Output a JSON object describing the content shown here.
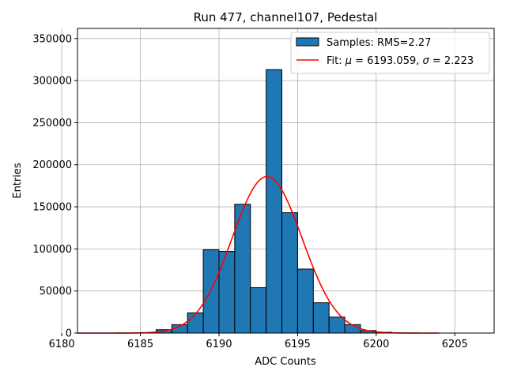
{
  "chart_data": {
    "type": "bar",
    "title": "Run 477, channel107, Pedestal",
    "xlabel": "ADC Counts",
    "ylabel": "Entries",
    "xlim": [
      6181.0,
      6207.5
    ],
    "ylim": [
      0,
      362000
    ],
    "xticks": [
      6180,
      6185,
      6190,
      6195,
      6200,
      6205
    ],
    "yticks": [
      0,
      50000,
      100000,
      150000,
      200000,
      250000,
      300000,
      350000
    ],
    "grid": true,
    "legend_position": "top-right",
    "colors": {
      "bars": "#1f77b4",
      "fit": "#ff0000",
      "edge": "#000000",
      "grid": "#b0b0b0"
    },
    "series": [
      {
        "name": "Samples: RMS=2.27",
        "kind": "histogram",
        "bins": [
          {
            "x0": 6186,
            "x1": 6187,
            "value": 4000
          },
          {
            "x0": 6187,
            "x1": 6188,
            "value": 10000
          },
          {
            "x0": 6188,
            "x1": 6189,
            "value": 24000
          },
          {
            "x0": 6189,
            "x1": 6190,
            "value": 99000
          },
          {
            "x0": 6190,
            "x1": 6191,
            "value": 97000
          },
          {
            "x0": 6191,
            "x1": 6192,
            "value": 153000
          },
          {
            "x0": 6192,
            "x1": 6193,
            "value": 54000
          },
          {
            "x0": 6193,
            "x1": 6194,
            "value": 313000
          },
          {
            "x0": 6194,
            "x1": 6195,
            "value": 143000
          },
          {
            "x0": 6195,
            "x1": 6196,
            "value": 76000
          },
          {
            "x0": 6196,
            "x1": 6197,
            "value": 36000
          },
          {
            "x0": 6197,
            "x1": 6198,
            "value": 19000
          },
          {
            "x0": 6198,
            "x1": 6199,
            "value": 10000
          },
          {
            "x0": 6199,
            "x1": 6200,
            "value": 3000
          },
          {
            "x0": 6200,
            "x1": 6201,
            "value": 1000
          }
        ]
      },
      {
        "name_prefix": "Fit: ",
        "name_mu_symbol": "μ",
        "name_mid": " = 6193.059, ",
        "name_sigma_symbol": "σ",
        "name_suffix": " = 2.223",
        "kind": "gaussian",
        "mu": 6193.059,
        "sigma": 2.223,
        "amplitude": 186000,
        "x_range": [
          6181,
          6204
        ]
      }
    ]
  }
}
